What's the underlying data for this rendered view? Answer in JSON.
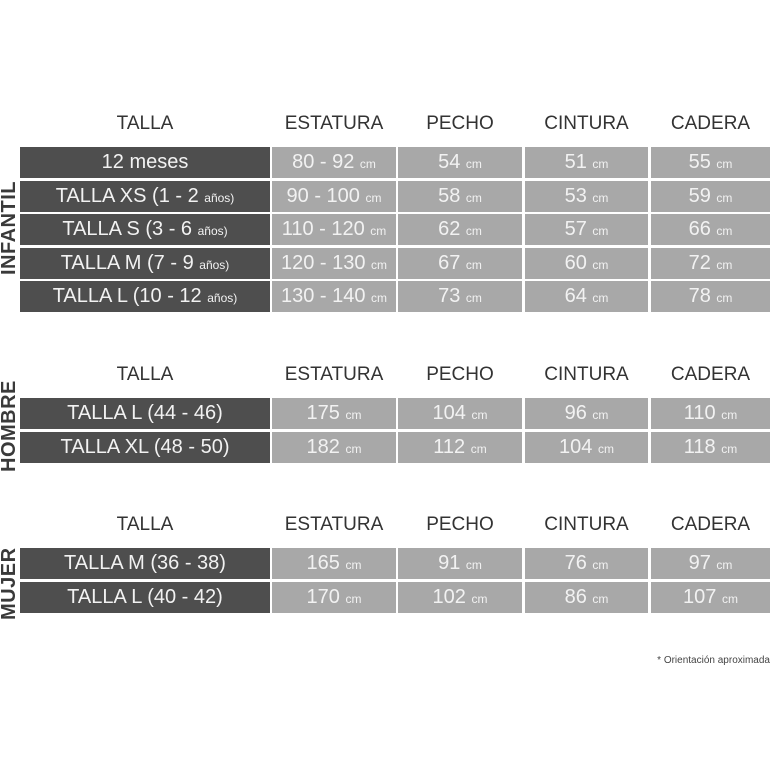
{
  "sections": [
    {
      "label": "INFANTIL",
      "headers": [
        "TALLA",
        "ESTATURA",
        "PECHO",
        "CINTURA",
        "CADERA"
      ],
      "rows": [
        {
          "talla": "12 meses",
          "talla_unit": "",
          "estatura": "80 - 92",
          "pecho": "54",
          "cintura": "51",
          "cadera": "55"
        },
        {
          "talla": "TALLA XS (1 - 2",
          "talla_unit": "años)",
          "estatura": "90 - 100",
          "pecho": "58",
          "cintura": "53",
          "cadera": "59"
        },
        {
          "talla": "TALLA S (3 - 6",
          "talla_unit": "años)",
          "estatura": "110 - 120",
          "pecho": "62",
          "cintura": "57",
          "cadera": "66"
        },
        {
          "talla": "TALLA M (7 - 9",
          "talla_unit": "años)",
          "estatura": "120 - 130",
          "pecho": "67",
          "cintura": "60",
          "cadera": "72"
        },
        {
          "talla": "TALLA L (10 - 12",
          "talla_unit": "años)",
          "estatura": "130 - 140",
          "pecho": "73",
          "cintura": "64",
          "cadera": "78"
        }
      ]
    },
    {
      "label": "HOMBRE",
      "headers": [
        "TALLA",
        "ESTATURA",
        "PECHO",
        "CINTURA",
        "CADERA"
      ],
      "rows": [
        {
          "talla": "TALLA L (44 - 46)",
          "talla_unit": "",
          "estatura": "175",
          "pecho": "104",
          "cintura": "96",
          "cadera": "110"
        },
        {
          "talla": "TALLA XL (48 - 50)",
          "talla_unit": "",
          "estatura": "182",
          "pecho": "112",
          "cintura": "104",
          "cadera": "118"
        }
      ]
    },
    {
      "label": "MUJER",
      "headers": [
        "TALLA",
        "ESTATURA",
        "PECHO",
        "CINTURA",
        "CADERA"
      ],
      "rows": [
        {
          "talla": "TALLA M (36 - 38)",
          "talla_unit": "",
          "estatura": "165",
          "pecho": "91",
          "cintura": "76",
          "cadera": "97"
        },
        {
          "talla": "TALLA L (40 - 42)",
          "talla_unit": "",
          "estatura": "170",
          "pecho": "102",
          "cintura": "86",
          "cadera": "107"
        }
      ]
    }
  ],
  "unit": "cm",
  "footnote": "* Orientación aproximada",
  "colors": {
    "dark_cell": "#4e4e4e",
    "light_cell": "#a8a8a8",
    "text": "#f2f2f2"
  }
}
